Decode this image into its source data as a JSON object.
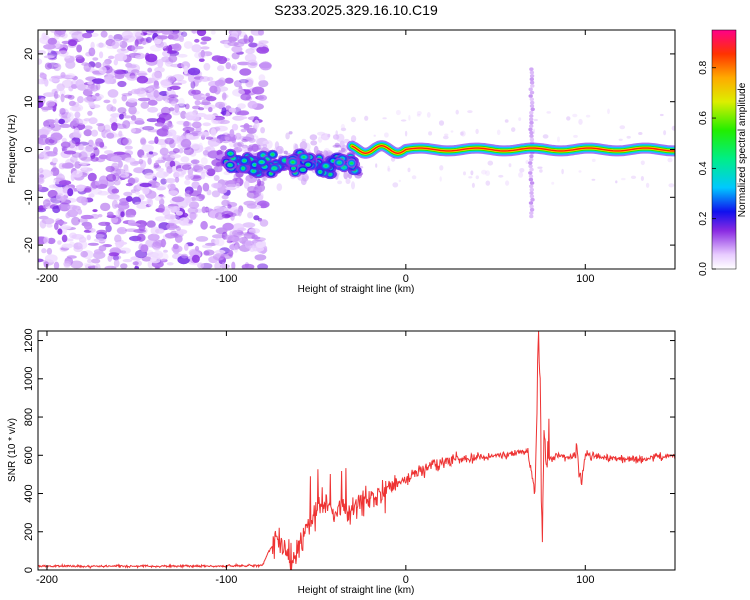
{
  "title": "S233.2025.329.16.10.C19",
  "chart_data": [
    {
      "type": "heatmap",
      "name": "spectrogram",
      "xlabel": "Height of straight line (km)",
      "ylabel": "Frequency (Hz)",
      "xlim": [
        -205,
        150
      ],
      "ylim": [
        -25,
        25
      ],
      "xticks": [
        -200,
        -100,
        0,
        100
      ],
      "xtick_labels": [
        "-200",
        "-100",
        "0",
        "100"
      ],
      "yticks": [
        -20,
        -10,
        0,
        10,
        20
      ],
      "ytick_labels": [
        "-20",
        "-10",
        "0",
        "10",
        "20"
      ],
      "colorbar": {
        "label": "Normalized spectral amplitude",
        "range": [
          0,
          0.95
        ],
        "ticks": [
          0.0,
          0.2,
          0.4,
          0.6,
          0.8
        ],
        "tick_labels": [
          "0.0",
          "0.2",
          "0.4",
          "0.6",
          "0.8"
        ]
      },
      "features": {
        "noise_region_km": [
          -205,
          -78
        ],
        "transition_km": [
          -100,
          -30
        ],
        "signal_line_freq_hz": 0,
        "signal_region_km": [
          -30,
          150
        ],
        "spike_km": 70,
        "spike_freq_range_hz": [
          -14,
          17
        ]
      }
    },
    {
      "type": "line",
      "name": "snr",
      "xlabel": "Height of straight line (km)",
      "ylabel": "SNR (10 * v/v)",
      "xlim": [
        -205,
        150
      ],
      "ylim": [
        0,
        1250
      ],
      "xticks": [
        -200,
        -100,
        0,
        100
      ],
      "xtick_labels": [
        "-200",
        "-100",
        "0",
        "100"
      ],
      "yticks": [
        0,
        200,
        400,
        600,
        800,
        1000,
        1200
      ],
      "ytick_labels": [
        "0",
        "200",
        "400",
        "600",
        "800",
        "1000",
        "1200"
      ],
      "series": [
        {
          "name": "SNR",
          "color": "#ee3333",
          "x": [
            -205,
            -150,
            -100,
            -80,
            -72,
            -68,
            -64,
            -60,
            -55,
            -50,
            -45,
            -40,
            -35,
            -30,
            -25,
            -20,
            -10,
            0,
            10,
            20,
            30,
            40,
            50,
            60,
            68,
            72,
            74,
            75,
            76,
            77,
            78,
            80,
            85,
            90,
            95,
            98,
            100,
            110,
            120,
            130,
            140,
            150
          ],
          "values": [
            20,
            20,
            20,
            25,
            180,
            120,
            60,
            100,
            200,
            300,
            350,
            300,
            340,
            320,
            350,
            380,
            420,
            480,
            530,
            560,
            580,
            590,
            600,
            610,
            620,
            400,
            1240,
            900,
            80,
            700,
            620,
            580,
            600,
            580,
            610,
            460,
            600,
            590,
            580,
            580,
            590,
            590
          ],
          "amplitude_note": "noisy trace around these values"
        }
      ]
    }
  ]
}
